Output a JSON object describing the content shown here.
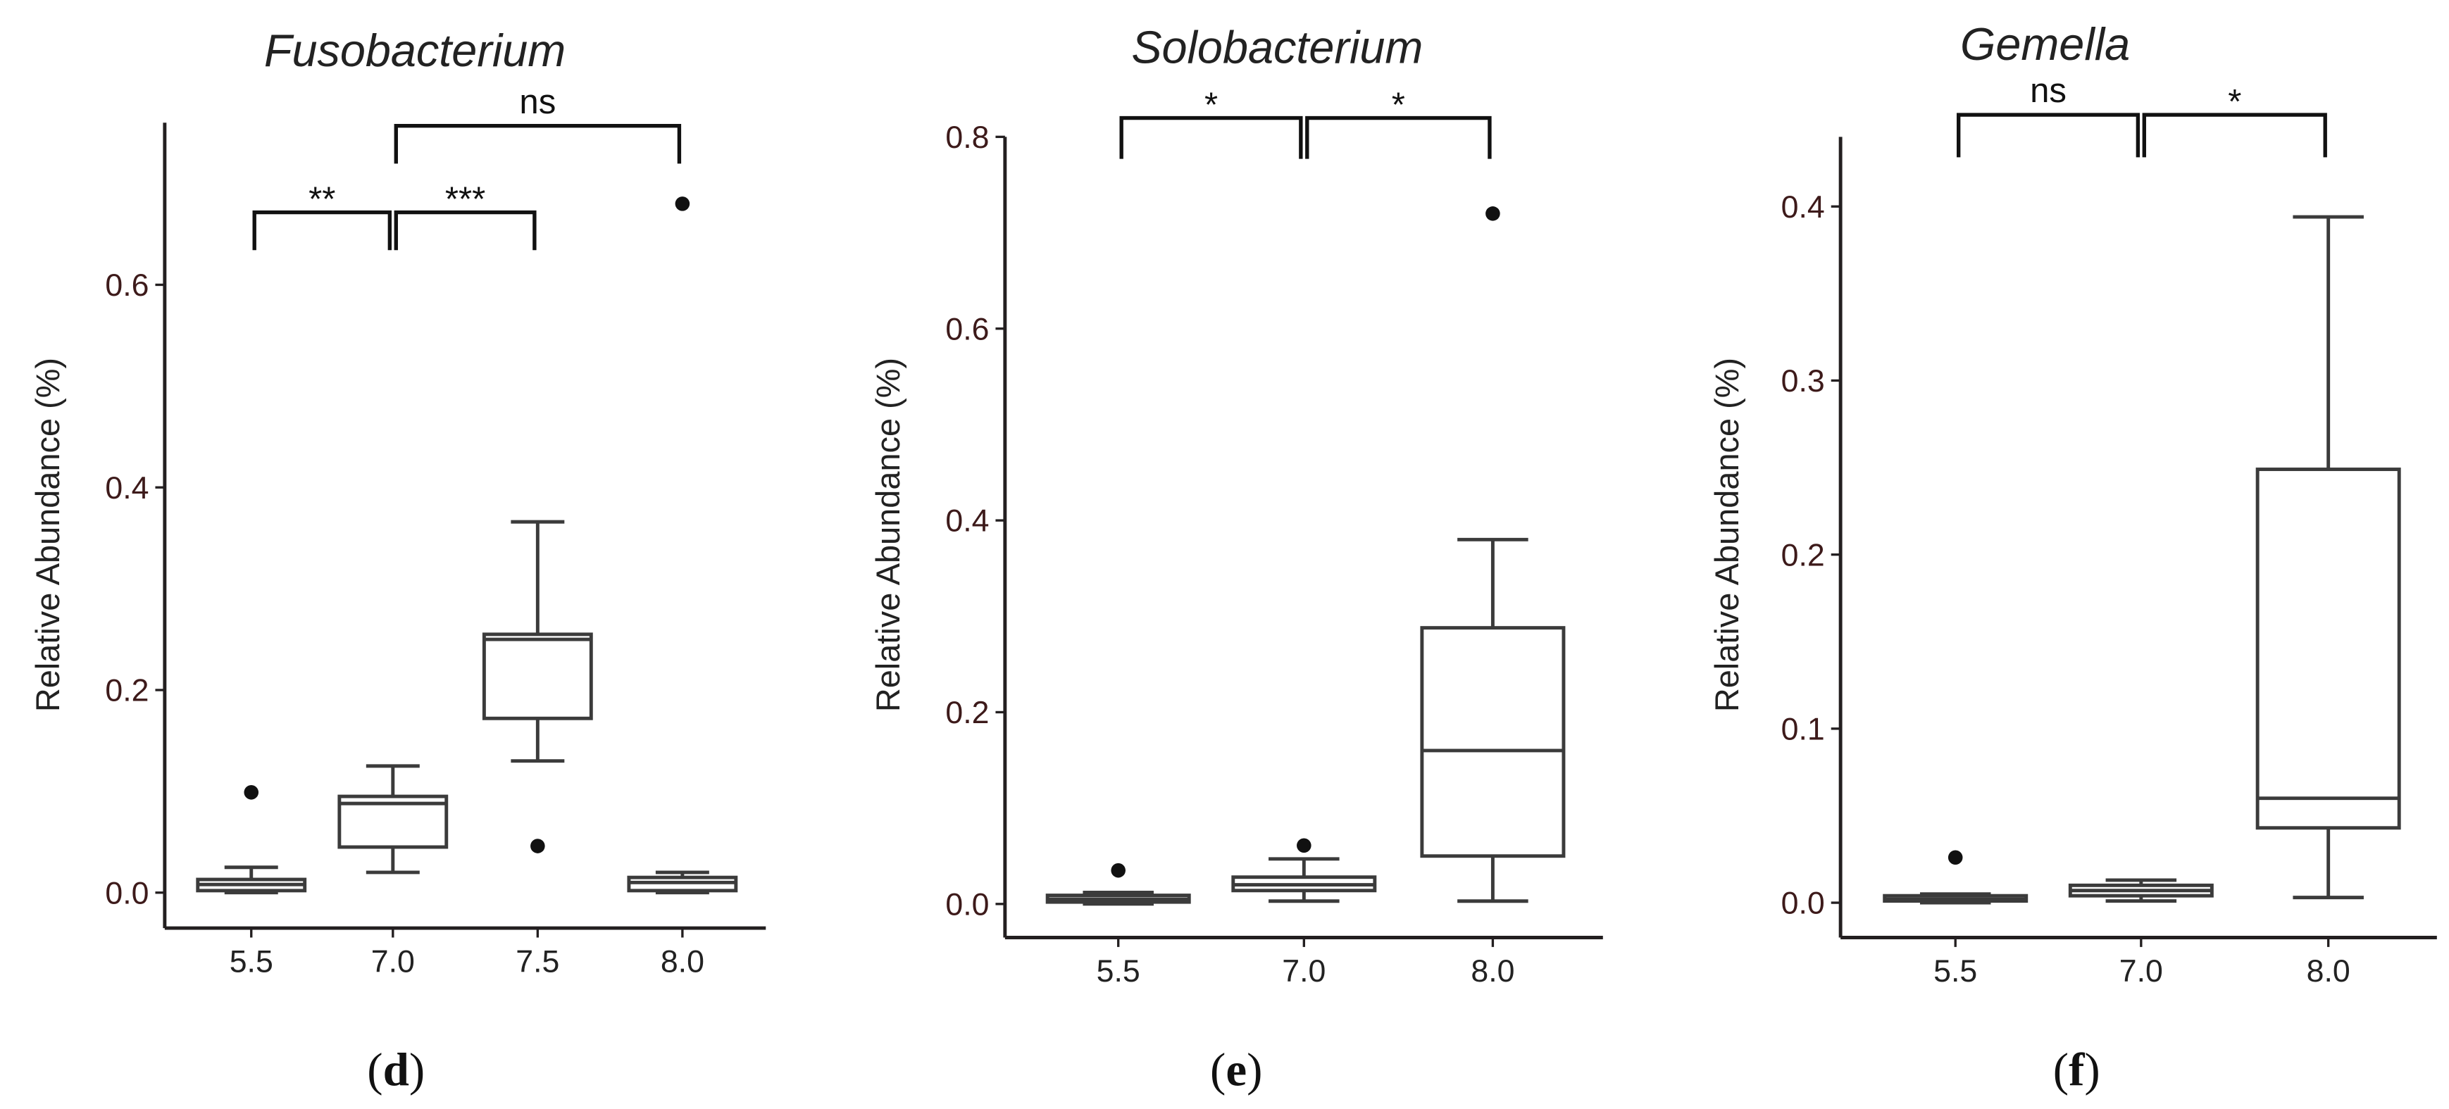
{
  "chart_data": [
    {
      "type": "box",
      "panel_label": "(d)",
      "title": "Fusobacterium",
      "ylabel": "Relative Abundance (%)",
      "xlabel": "",
      "ylim": [
        -0.035,
        0.76
      ],
      "yticks": [
        0.0,
        0.2,
        0.4,
        0.6
      ],
      "ytick_labels": [
        "0.0",
        "0.2",
        "0.4",
        "0.6"
      ],
      "categories": [
        "5.5",
        "7.0",
        "7.5",
        "8.0"
      ],
      "boxes": [
        {
          "category": "5.5",
          "whisker_low": 0.0,
          "q1": 0.002,
          "median": 0.008,
          "q3": 0.013,
          "whisker_high": 0.025,
          "outliers": [
            0.099
          ]
        },
        {
          "category": "7.0",
          "whisker_low": 0.02,
          "q1": 0.045,
          "median": 0.088,
          "q3": 0.095,
          "whisker_high": 0.125,
          "outliers": []
        },
        {
          "category": "7.5",
          "whisker_low": 0.13,
          "q1": 0.172,
          "median": 0.25,
          "q3": 0.255,
          "whisker_high": 0.366,
          "outliers": [
            0.046
          ]
        },
        {
          "category": "8.0",
          "whisker_low": 0.0,
          "q1": 0.002,
          "median": 0.01,
          "q3": 0.015,
          "whisker_high": 0.02,
          "outliers": [
            0.68
          ]
        }
      ],
      "comparisons": [
        {
          "from": "5.5",
          "to": "7.0",
          "label": "**",
          "level": 1
        },
        {
          "from": "7.0",
          "to": "7.5",
          "label": "***",
          "level": 1
        },
        {
          "from": "7.0",
          "to": "8.0",
          "label": "ns",
          "level": 2
        }
      ]
    },
    {
      "type": "box",
      "panel_label": "(e)",
      "title": "Solobacterium",
      "ylabel": "Relative Abundance (%)",
      "xlabel": "",
      "ylim": [
        -0.035,
        0.8
      ],
      "yticks": [
        0.0,
        0.2,
        0.4,
        0.6,
        0.8
      ],
      "ytick_labels": [
        "0.0",
        "0.2",
        "0.4",
        "0.6",
        "0.8"
      ],
      "categories": [
        "5.5",
        "7.0",
        "8.0"
      ],
      "boxes": [
        {
          "category": "5.5",
          "whisker_low": 0.0,
          "q1": 0.002,
          "median": 0.005,
          "q3": 0.009,
          "whisker_high": 0.012,
          "outliers": [
            0.035
          ]
        },
        {
          "category": "7.0",
          "whisker_low": 0.003,
          "q1": 0.014,
          "median": 0.02,
          "q3": 0.028,
          "whisker_high": 0.047,
          "outliers": [
            0.061
          ]
        },
        {
          "category": "8.0",
          "whisker_low": 0.003,
          "q1": 0.05,
          "median": 0.16,
          "q3": 0.288,
          "whisker_high": 0.38,
          "outliers": [
            0.72
          ]
        }
      ],
      "comparisons": [
        {
          "from": "5.5",
          "to": "7.0",
          "label": "*",
          "level": 1
        },
        {
          "from": "7.0",
          "to": "8.0",
          "label": "*",
          "level": 1
        }
      ]
    },
    {
      "type": "box",
      "panel_label": "(f)",
      "title": "Gemella",
      "ylabel": "Relative Abundance (%)",
      "xlabel": "",
      "ylim": [
        -0.02,
        0.44
      ],
      "yticks": [
        0.0,
        0.1,
        0.2,
        0.3,
        0.4
      ],
      "ytick_labels": [
        "0.0",
        "0.1",
        "0.2",
        "0.3",
        "0.4"
      ],
      "categories": [
        "5.5",
        "7.0",
        "8.0"
      ],
      "boxes": [
        {
          "category": "5.5",
          "whisker_low": 0.0,
          "q1": 0.001,
          "median": 0.002,
          "q3": 0.004,
          "whisker_high": 0.005,
          "outliers": [
            0.026
          ]
        },
        {
          "category": "7.0",
          "whisker_low": 0.001,
          "q1": 0.004,
          "median": 0.007,
          "q3": 0.01,
          "whisker_high": 0.013,
          "outliers": []
        },
        {
          "category": "8.0",
          "whisker_low": 0.003,
          "q1": 0.043,
          "median": 0.06,
          "q3": 0.249,
          "whisker_high": 0.394,
          "outliers": []
        }
      ],
      "comparisons": [
        {
          "from": "5.5",
          "to": "7.0",
          "label": "ns",
          "level": 1
        },
        {
          "from": "7.0",
          "to": "8.0",
          "label": "*",
          "level": 1
        }
      ]
    }
  ]
}
